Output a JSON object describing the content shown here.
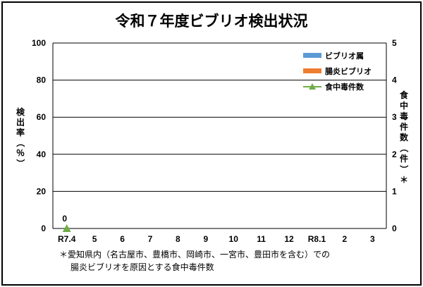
{
  "chart_data": {
    "type": "bar",
    "title": "令和７年度ビブリオ検出状況",
    "categories": [
      "R7.4",
      "5",
      "6",
      "7",
      "8",
      "9",
      "10",
      "11",
      "12",
      "R8.1",
      "2",
      "3"
    ],
    "ylim": [
      0,
      100
    ],
    "y_ticks": [
      "0",
      "20",
      "40",
      "60",
      "80",
      "100"
    ],
    "ylabel": "検出率（％）",
    "y2lim": [
      0,
      5
    ],
    "y2_ticks": [
      "0",
      "1",
      "2",
      "3",
      "4",
      "5"
    ],
    "y2label": "食中毒件数（件）＊",
    "grid": true,
    "legend_position": "top-right",
    "series": [
      {
        "name": "ビブリオ属",
        "type": "bar",
        "color": "#5b9bd5",
        "values": [
          null,
          null,
          null,
          null,
          null,
          null,
          null,
          null,
          null,
          null,
          null,
          null
        ]
      },
      {
        "name": "腸炎ビブリオ",
        "type": "bar",
        "color": "#ed7d31",
        "values": [
          null,
          null,
          null,
          null,
          null,
          null,
          null,
          null,
          null,
          null,
          null,
          null
        ]
      },
      {
        "name": "食中毒件数",
        "type": "line",
        "axis": "right",
        "color": "#70ad47",
        "values": [
          0,
          null,
          null,
          null,
          null,
          null,
          null,
          null,
          null,
          null,
          null,
          null
        ],
        "data_labels": [
          "0"
        ]
      }
    ],
    "footnote_line1": "＊愛知県内（名古屋市、豊橋市、岡崎市、一宮市、豊田市を含む）での",
    "footnote_line2": "腸炎ビブリオを原因とする食中毒件数"
  }
}
